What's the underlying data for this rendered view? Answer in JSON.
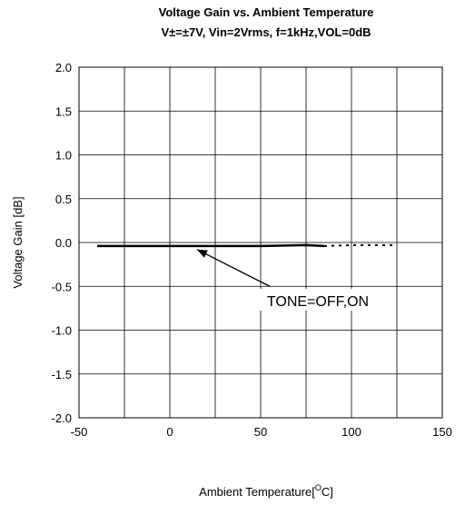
{
  "chart_data": {
    "type": "line",
    "title": "Voltage Gain vs. Ambient Temperature",
    "subtitle": "V±=±7V, Vin=2Vrms, f=1kHz,VOL=0dB",
    "xlabel_prefix": "Ambient Temperature[",
    "xlabel_sup": "O",
    "xlabel_suffix": "C]",
    "ylabel": "Voltage Gain [dB]",
    "xlim": [
      -50,
      150
    ],
    "ylim": [
      -2.0,
      2.0
    ],
    "xticks": [
      -50,
      0,
      50,
      100,
      150
    ],
    "xtick_labels": [
      "-50",
      "0",
      "50",
      "100",
      "150"
    ],
    "xgrid_step": 25,
    "yticks": [
      2.0,
      1.5,
      1.0,
      0.5,
      0.0,
      -0.5,
      -1.0,
      -1.5,
      -2.0
    ],
    "ytick_labels": [
      "2.0",
      "1.5",
      "1.0",
      "0.5",
      "0.0",
      "-0.5",
      "-1.0",
      "-1.5",
      "-2.0"
    ],
    "grid": true,
    "series": [
      {
        "style": "solid",
        "x": [
          -40,
          0,
          25,
          50,
          75,
          85
        ],
        "y": [
          -0.04,
          -0.04,
          -0.04,
          -0.04,
          -0.03,
          -0.04
        ],
        "color": "#000000"
      },
      {
        "style": "dotted",
        "x": [
          85,
          100,
          125
        ],
        "y": [
          -0.04,
          -0.03,
          -0.03
        ],
        "color": "#000000"
      }
    ],
    "annotation": {
      "text": "TONE=OFF,ON",
      "arrow_to": [
        15,
        -0.08
      ],
      "arrow_from": [
        55,
        -0.5
      ]
    }
  }
}
